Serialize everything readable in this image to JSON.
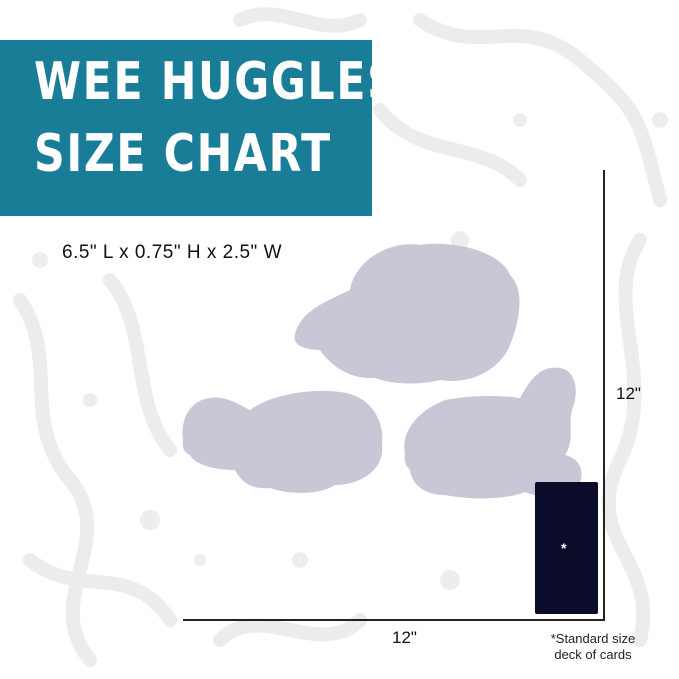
{
  "header": {
    "title_line1": "WEE HUGGLES",
    "title_line2": "SIZE CHART",
    "banner_color": "#1a7d98"
  },
  "dimensions": "6.5\" L x 0.75\" H x  2.5\" W",
  "chart": {
    "width_label": "12\"",
    "height_label": "12\"",
    "card_mark": "*",
    "footnote_line1": "*Standard size",
    "footnote_line2": "deck of cards",
    "silhouette_color": "#c9c7d6",
    "card_color": "#0b0c2a"
  }
}
